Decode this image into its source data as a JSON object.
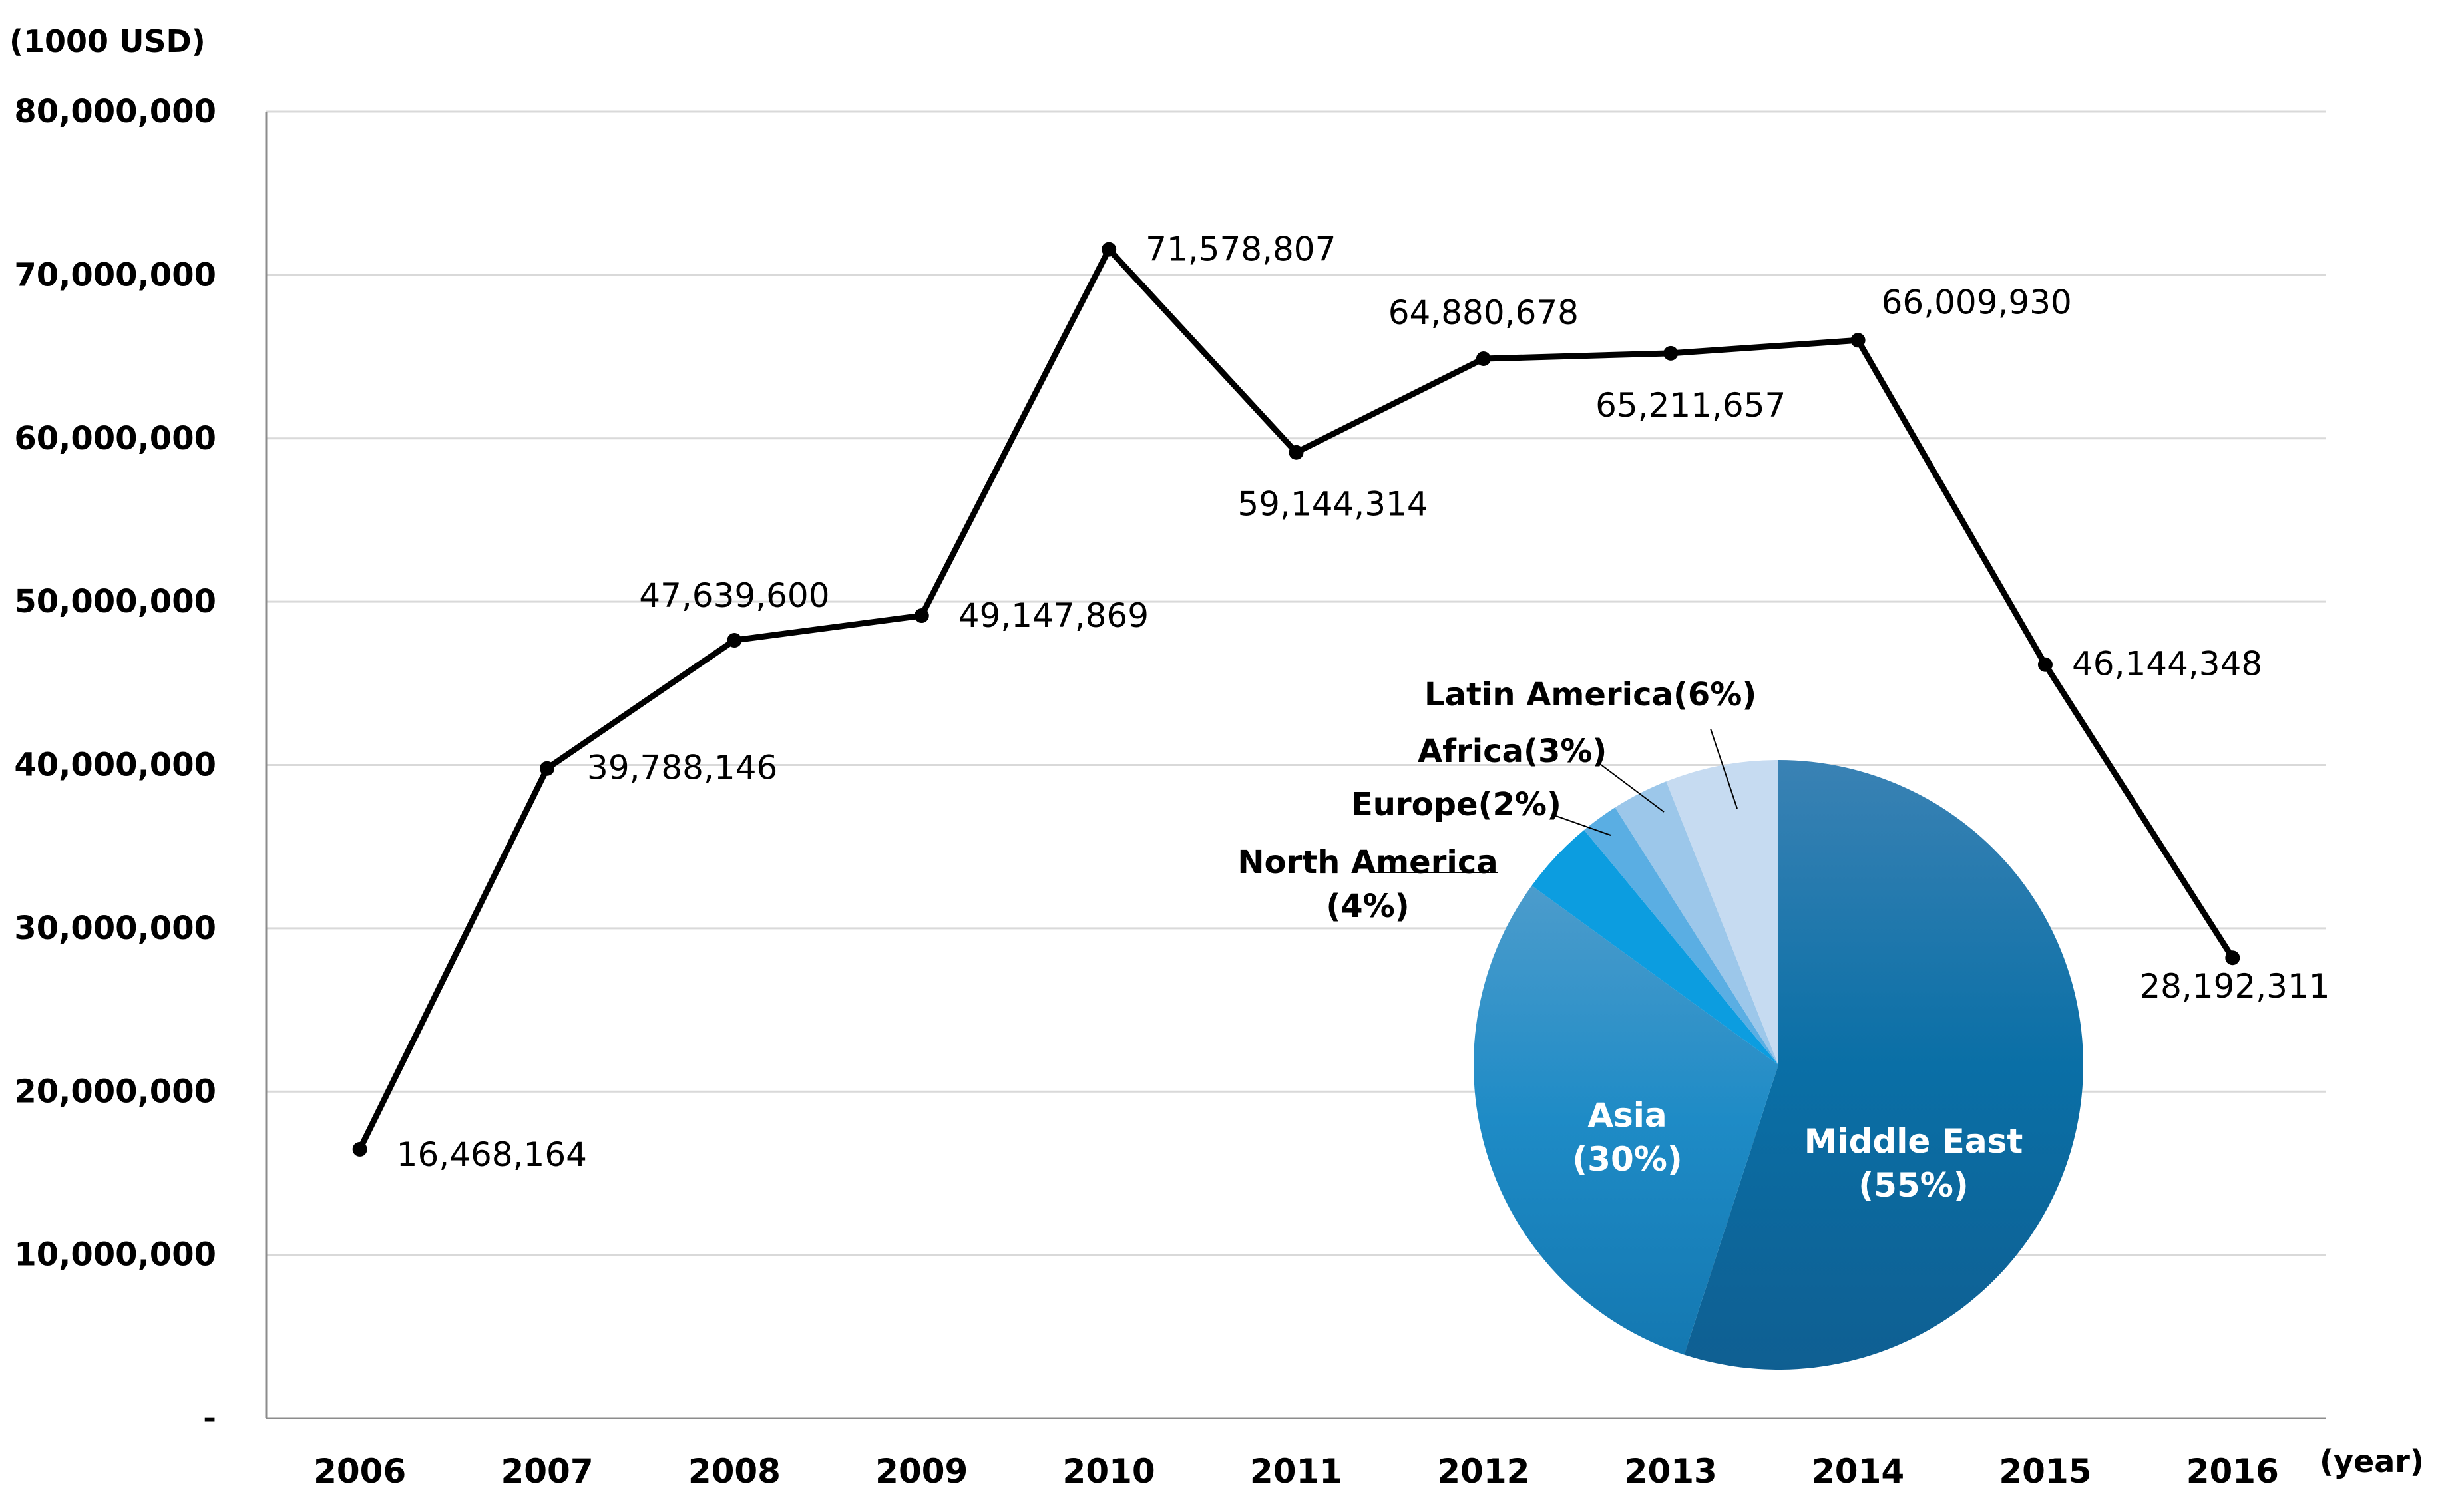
{
  "chart_data": [
    {
      "type": "line",
      "ylabel": "(1000 USD)",
      "xlabel": "(year)",
      "categories": [
        "2006",
        "2007",
        "2008",
        "2009",
        "2010",
        "2011",
        "2012",
        "2013",
        "2014",
        "2015",
        "2016"
      ],
      "values": [
        16468164,
        39788146,
        47639600,
        49147869,
        71578807,
        59144314,
        64880678,
        65211657,
        66009930,
        46144348,
        28192311
      ],
      "data_labels": [
        "16,468,164",
        "39,788,146",
        "47,639,600",
        "49,147,869",
        "71,578,807",
        "59,144,314",
        "64,880,678",
        "65,211,657",
        "66,009,930",
        "46,144,348",
        "28,192,311"
      ],
      "ylim": [
        0,
        80000000
      ],
      "yticks": [
        0,
        10000000,
        20000000,
        30000000,
        40000000,
        50000000,
        60000000,
        70000000,
        80000000
      ],
      "ytick_labels": [
        "-",
        "10,000,000",
        "20,000,000",
        "30,000,000",
        "40,000,000",
        "50,000,000",
        "60,000,000",
        "70,000,000",
        "80,000,000"
      ],
      "grid": true,
      "line_color": "#000000"
    },
    {
      "type": "pie",
      "slices": [
        {
          "name": "Middle East",
          "percent_label": "(55%)",
          "value": 55,
          "color": "#1a70a8"
        },
        {
          "name": "Asia",
          "percent_label": "(30%)",
          "value": 30,
          "color": "#1f8cc8"
        },
        {
          "name": "North America",
          "percent_label": "(4%)",
          "value": 4,
          "color": "#0c9de0"
        },
        {
          "name": "Europe(2%)",
          "percent_label": "",
          "value": 2,
          "color": "#5aaee3"
        },
        {
          "name": "Africa(3%)",
          "percent_label": "",
          "value": 3,
          "color": "#9cc7ea"
        },
        {
          "name": "Latin America(6%)",
          "percent_label": "",
          "value": 6,
          "color": "#c6dbf1"
        }
      ]
    }
  ]
}
